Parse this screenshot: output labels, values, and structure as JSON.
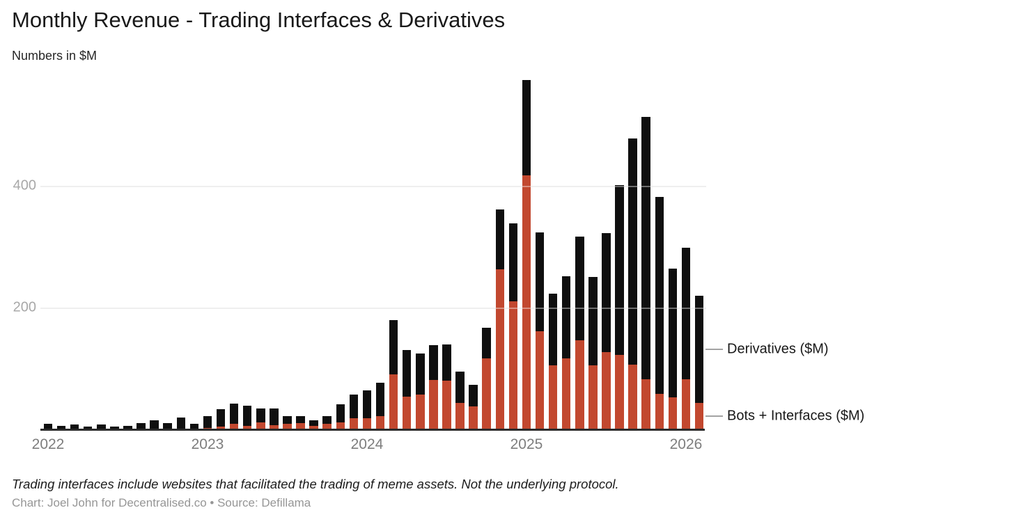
{
  "header": {
    "title": "Monthly Revenue - Trading Interfaces & Derivatives",
    "subtitle": "Numbers in $M"
  },
  "footer": {
    "note": "Trading interfaces include websites that facilitated the trading of meme assets. Not the underlying protocol.",
    "credit": "Chart: Joel John for Decentralised.co • Source: Defillama"
  },
  "legend": {
    "derivatives_label": "Derivatives ($M)",
    "bots_label": "Bots + Interfaces ($M)"
  },
  "chart_data": {
    "type": "bar",
    "stacked": true,
    "title": "Monthly Revenue - Trading Interfaces & Derivatives",
    "units": "Numbers in $M",
    "x_start": "2022-01",
    "x_end": "2026-02",
    "x_tick_labels": [
      "2022",
      "2023",
      "2024",
      "2025",
      "2026"
    ],
    "x_tick_indices": [
      0,
      12,
      24,
      36,
      48
    ],
    "yticks": [
      200,
      400
    ],
    "ylim": [
      0,
      600
    ],
    "grid": "horizontal",
    "legend_position": "right",
    "series": [
      {
        "name": "Bots + Interfaces ($M)",
        "color": "#c2482f",
        "values": [
          0,
          0,
          0,
          0,
          0,
          0,
          0,
          0,
          1,
          1,
          2,
          2,
          4,
          6,
          10,
          7,
          13,
          8,
          10,
          12,
          7,
          10,
          13,
          19,
          19,
          23,
          91,
          55,
          58,
          82,
          81,
          45,
          39,
          118,
          264,
          211,
          418,
          162,
          106,
          118,
          148,
          106,
          128,
          123,
          108,
          83,
          59,
          54,
          83,
          45
        ]
      },
      {
        "name": "Derivatives ($M)",
        "color": "#0f0f0f",
        "values": [
          10,
          7,
          9,
          6,
          9,
          6,
          7,
          11,
          15,
          10,
          19,
          8,
          19,
          28,
          33,
          33,
          22,
          28,
          13,
          11,
          9,
          13,
          29,
          39,
          46,
          55,
          90,
          77,
          68,
          58,
          60,
          51,
          35,
          50,
          98,
          128,
          157,
          163,
          118,
          135,
          170,
          145,
          195,
          279,
          371,
          431,
          324,
          211,
          216,
          176
        ]
      }
    ]
  }
}
